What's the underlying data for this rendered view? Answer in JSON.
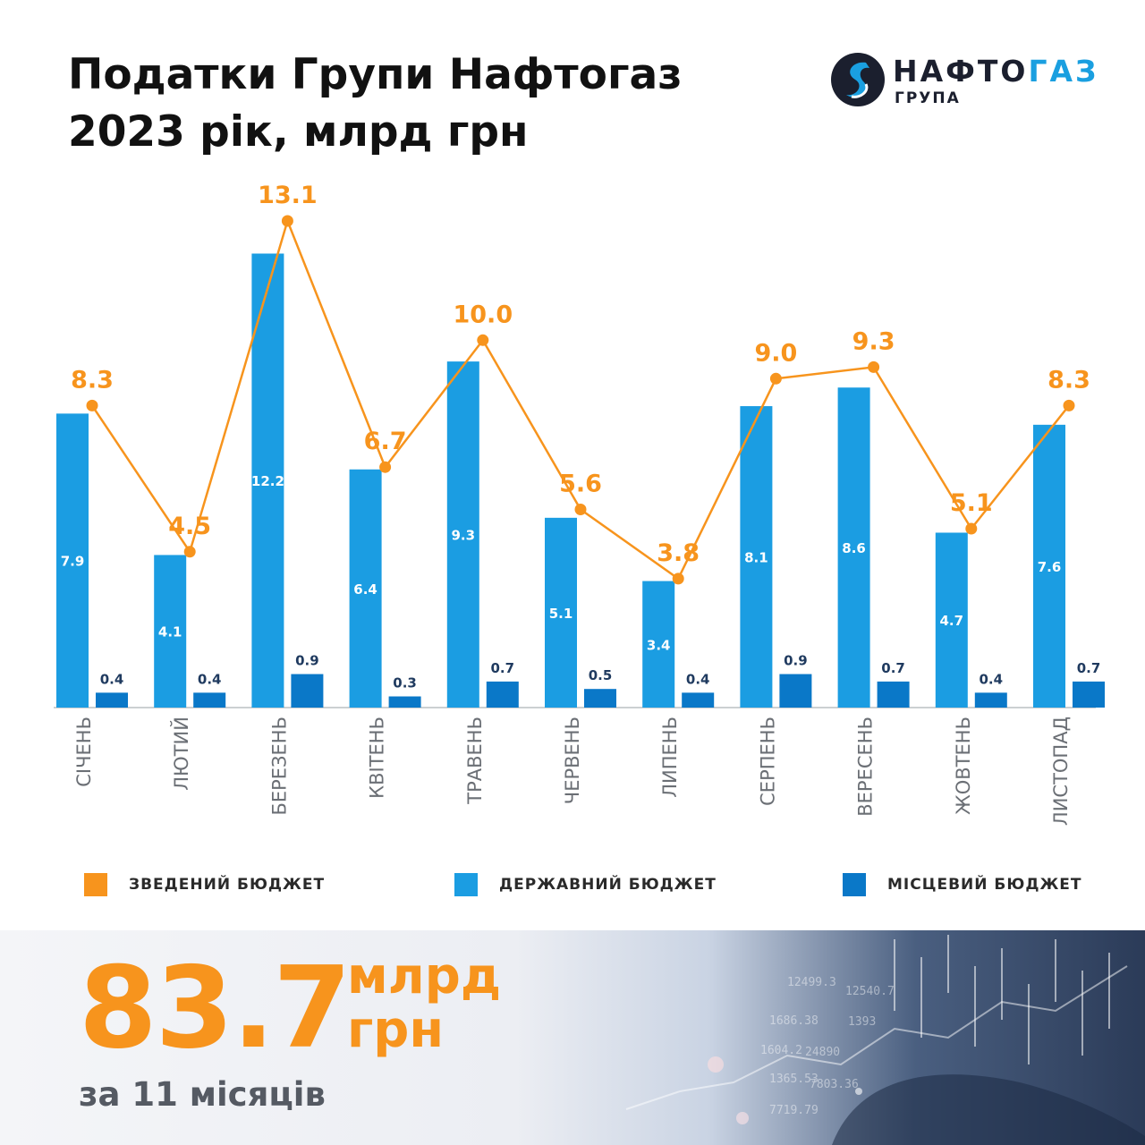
{
  "title": {
    "line1": "Податки Групи Нафтогаз",
    "line2": "2023 рік, млрд грн"
  },
  "logo": {
    "name_part1": "НАФТО",
    "name_part2": "ГАЗ",
    "subtitle": "ГРУПА"
  },
  "colors": {
    "consolidated": "#f7941d",
    "state": "#1b9de2",
    "local": "#0a78c8"
  },
  "chart_data": {
    "type": "bar",
    "categories": [
      "СІЧЕНЬ",
      "ЛЮТИЙ",
      "БЕРЕЗЕНЬ",
      "КВІТЕНЬ",
      "ТРАВЕНЬ",
      "ЧЕРВЕНЬ",
      "ЛИПЕНЬ",
      "СЕРПЕНЬ",
      "ВЕРЕСЕНЬ",
      "ЖОВТЕНЬ",
      "ЛИСТОПАД"
    ],
    "series": [
      {
        "name": "ДЕРЖАВНИЙ БЮДЖЕТ",
        "type": "bar",
        "color": "#1b9de2",
        "values": [
          7.9,
          4.1,
          12.2,
          6.4,
          9.3,
          5.1,
          3.4,
          8.1,
          8.6,
          4.7,
          7.6
        ]
      },
      {
        "name": "МІСЦЕВИЙ БЮДЖЕТ",
        "type": "bar",
        "color": "#0a78c8",
        "values": [
          0.4,
          0.4,
          0.9,
          0.3,
          0.7,
          0.5,
          0.4,
          0.9,
          0.7,
          0.4,
          0.7
        ]
      },
      {
        "name": "ЗВЕДЕНИЙ БЮДЖЕТ",
        "type": "line",
        "color": "#f7941d",
        "values": [
          8.3,
          4.5,
          13.1,
          6.7,
          10.0,
          5.6,
          3.8,
          9.0,
          9.3,
          5.1,
          8.3
        ]
      }
    ],
    "legend_position": "bottom",
    "grid": false
  },
  "total": {
    "value": "83.7",
    "unit_line1": "млрд",
    "unit_line2": "грн",
    "period": "за 11 місяців"
  }
}
